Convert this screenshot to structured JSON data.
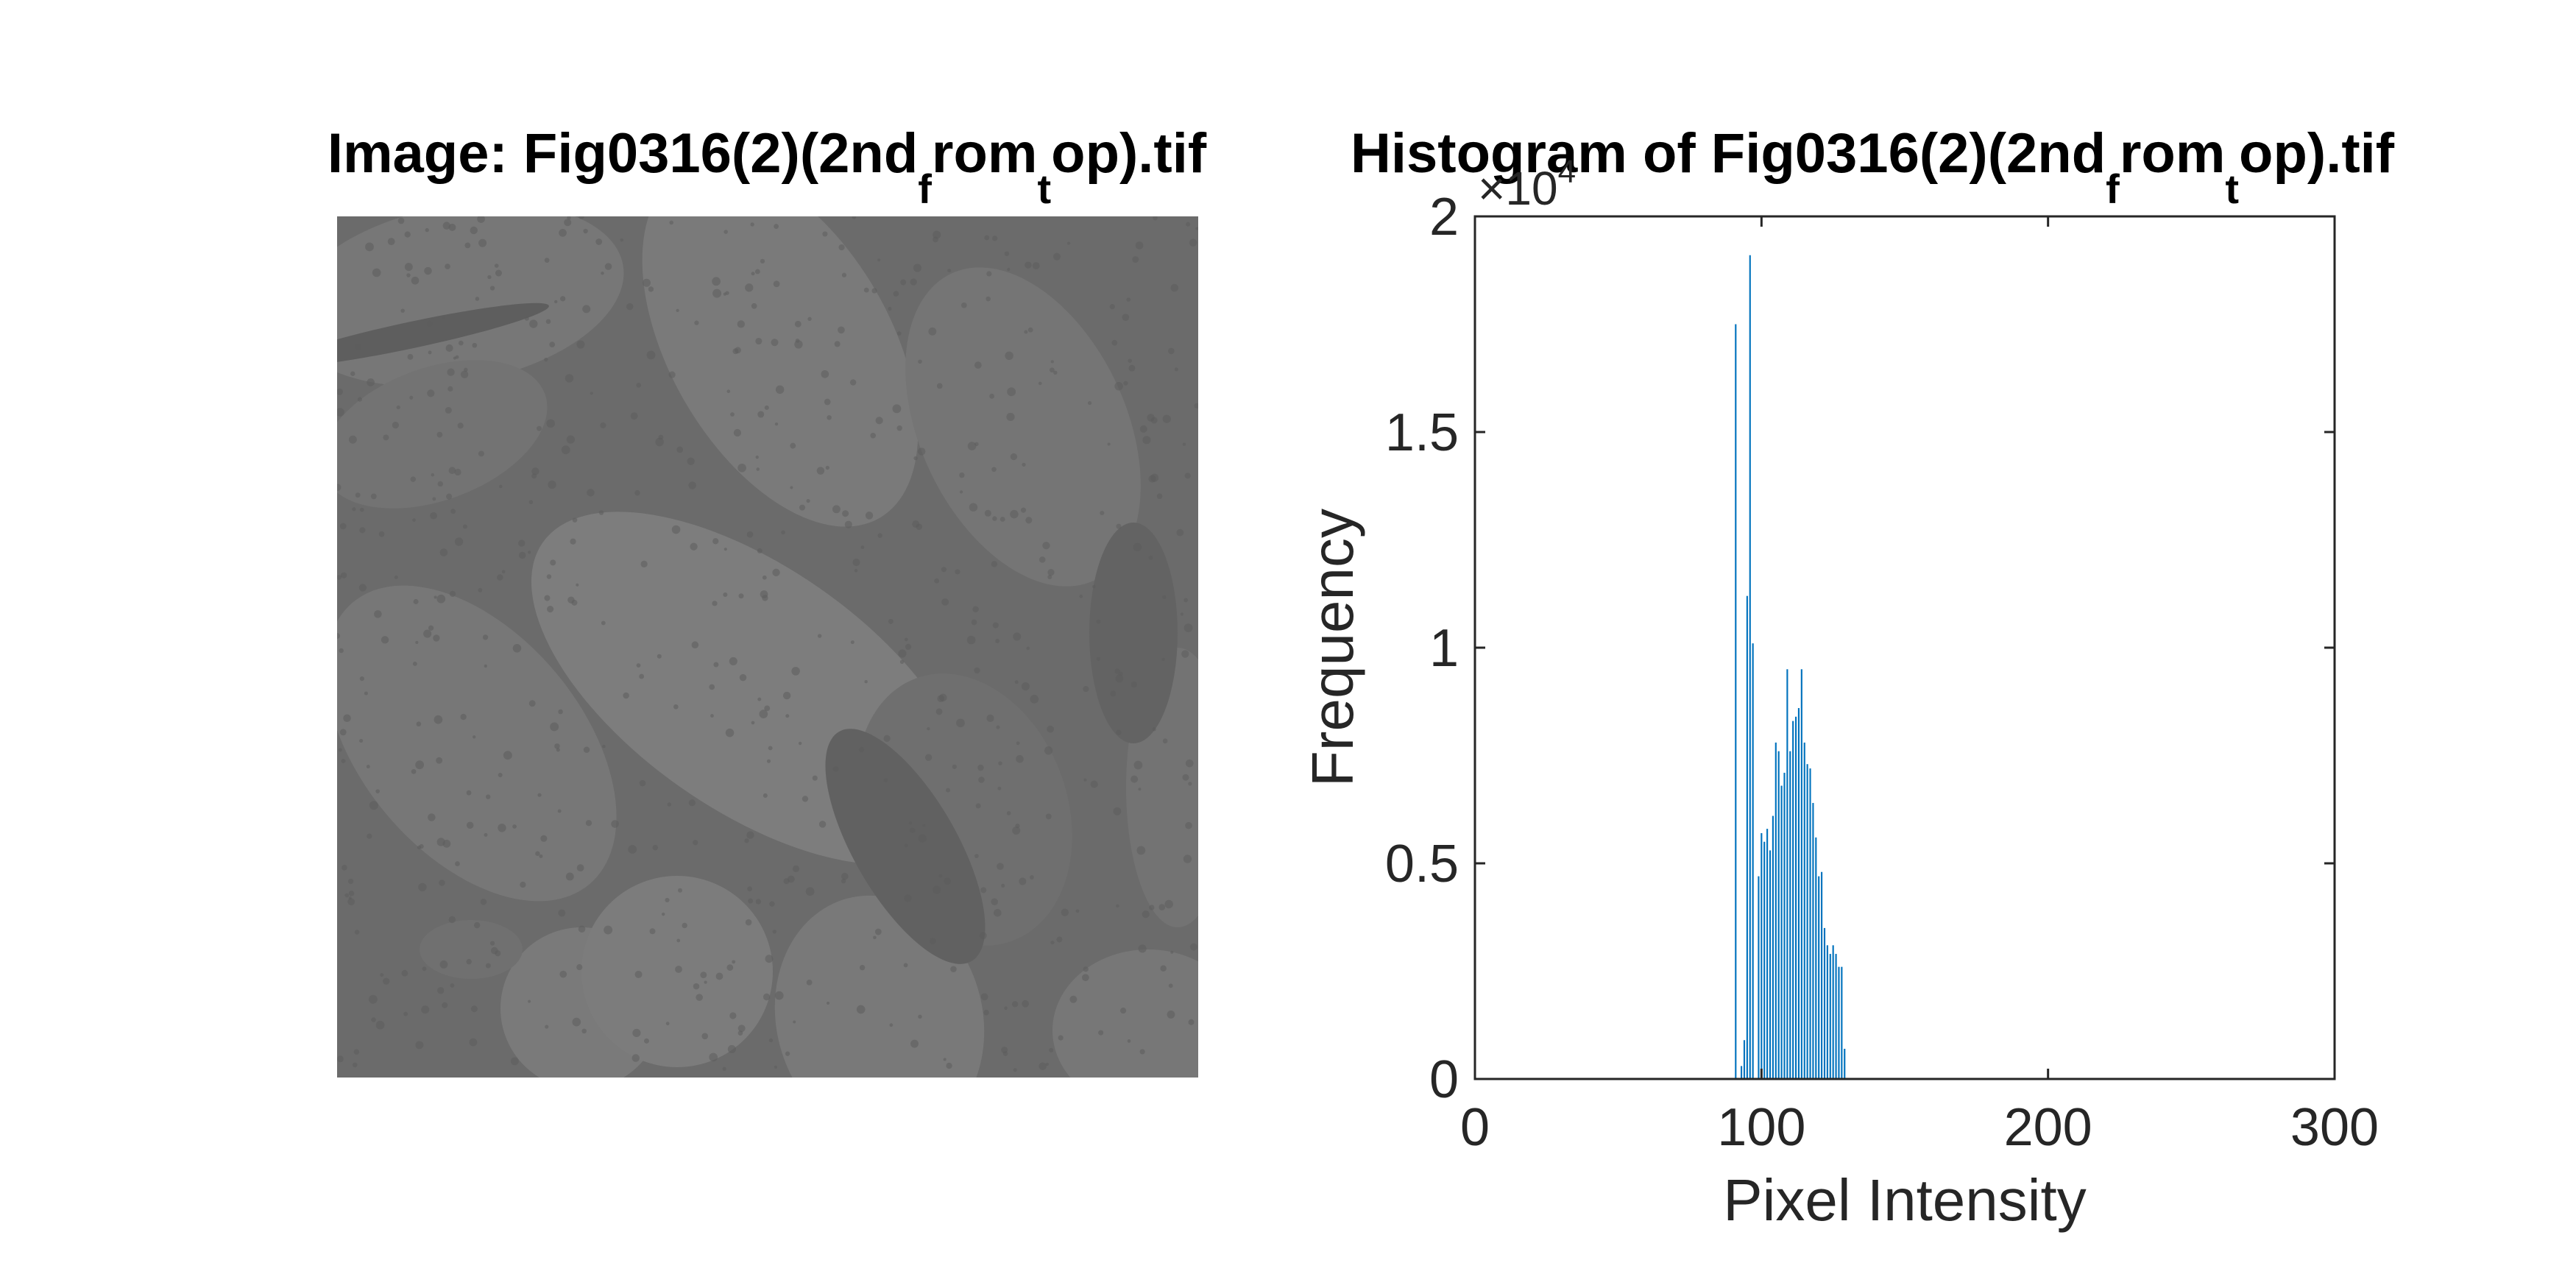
{
  "colors": {
    "bar": "#0072BD",
    "axis": "#262626",
    "image_background": "#6b6b6b"
  },
  "image_panel": {
    "title_prefix": "Image: Fig0316(2)(2nd",
    "title_sub_1": "f",
    "title_mid": "rom",
    "title_sub_2": "t",
    "title_suffix": "op).tif"
  },
  "chart_data": {
    "type": "bar",
    "title_prefix": "Histogram of Fig0316(2)(2nd",
    "title_sub_1": "f",
    "title_mid": "rom",
    "title_sub_2": "t",
    "title_suffix": "op).tif",
    "xlabel": "Pixel Intensity",
    "ylabel": "Frequency",
    "xlim": [
      0,
      300
    ],
    "ylim": [
      0,
      20000
    ],
    "xticks": [
      "0",
      "100",
      "200",
      "300"
    ],
    "yticks": [
      "0",
      "0.5",
      "1",
      "1.5",
      "2"
    ],
    "y_exponent_base": "×10",
    "y_exponent_power": "4",
    "grid": false,
    "x": [
      90,
      91,
      92,
      93,
      94,
      95,
      96,
      97,
      98,
      99,
      100,
      101,
      102,
      103,
      104,
      105,
      106,
      107,
      108,
      109,
      110,
      111,
      112,
      113,
      114,
      115,
      116,
      117,
      118,
      119,
      120,
      121,
      122,
      123,
      124,
      125,
      126,
      127,
      128,
      129,
      130,
      131,
      132,
      133,
      134,
      135,
      136
    ],
    "values": [
      0,
      17500,
      0,
      300,
      900,
      11200,
      19100,
      10100,
      0,
      4700,
      5700,
      5500,
      5800,
      5300,
      6100,
      7800,
      7600,
      6800,
      7100,
      9500,
      7600,
      8300,
      8400,
      8600,
      9500,
      7800,
      7300,
      7200,
      6400,
      5600,
      4700,
      4800,
      3500,
      3100,
      2900,
      3100,
      2900,
      2600,
      2600,
      700,
      0,
      0,
      0,
      0,
      0,
      0,
      0
    ]
  }
}
